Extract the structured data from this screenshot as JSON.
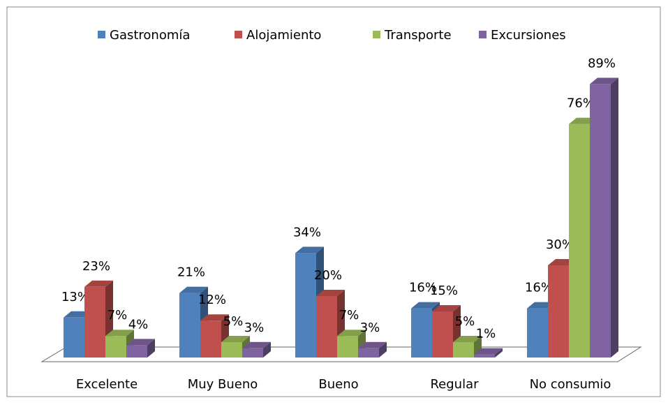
{
  "chart_data": {
    "type": "bar3d",
    "categories": [
      "Excelente",
      "Muy Bueno",
      "Bueno",
      "Regular",
      "No consumio"
    ],
    "series": [
      {
        "name": "Gastronomía",
        "color": "#4f81bd",
        "values": [
          13,
          21,
          34,
          16,
          16
        ],
        "value_labels": [
          "13%",
          "21%",
          "34%",
          "16%",
          "16%"
        ]
      },
      {
        "name": "Alojamiento",
        "color": "#c0504d",
        "values": [
          23,
          12,
          20,
          15,
          30
        ],
        "value_labels": [
          "23%",
          "12%",
          "20%",
          "15%",
          "30%"
        ]
      },
      {
        "name": "Transporte",
        "color": "#9bbb59",
        "values": [
          7,
          5,
          7,
          5,
          76
        ],
        "value_labels": [
          "7%",
          "5%",
          "7%",
          "5%",
          "76%"
        ]
      },
      {
        "name": "Excursiones",
        "color": "#8064a2",
        "values": [
          4,
          3,
          3,
          1,
          89
        ],
        "value_labels": [
          "4%",
          "3%",
          "3%",
          "1%",
          "89%"
        ]
      }
    ],
    "ylim": [
      0,
      100
    ],
    "legend": "top"
  }
}
